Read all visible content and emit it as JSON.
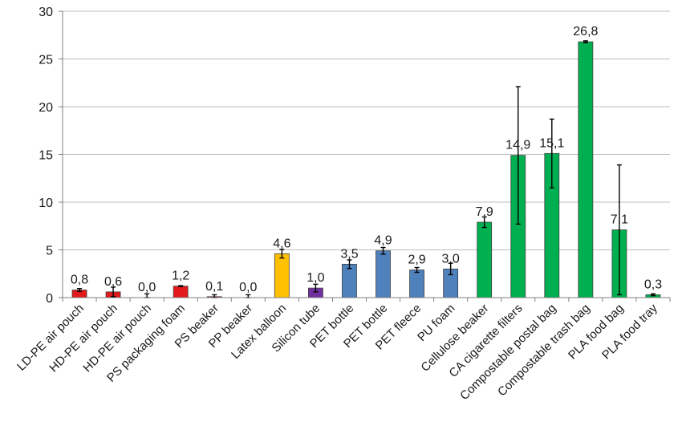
{
  "chart_data": {
    "type": "bar",
    "title": "",
    "xlabel": "",
    "ylabel": "",
    "ylim": [
      0,
      30
    ],
    "yticks": [
      0,
      5,
      10,
      15,
      20,
      25,
      30
    ],
    "grid": true,
    "legend": "none",
    "categories": [
      "LD-PE air pouch",
      "HD-PE air pouch",
      "HD-PE air pouch",
      "PS packaging foam",
      "PS beaker",
      "PP beaker",
      "Latex balloon",
      "Silicon tube",
      "PET bottle",
      "PET bottle",
      "PET fleece",
      "PU foam",
      "Cellulose beaker",
      "CA cigarette filters",
      "Compostable postal bag",
      "Compostable trash bag",
      "PLA food bag",
      "PLA food tray"
    ],
    "values": [
      0.8,
      0.6,
      0.0,
      1.2,
      0.1,
      0.0,
      4.6,
      1.0,
      3.5,
      4.9,
      2.9,
      3.0,
      7.9,
      14.9,
      15.1,
      26.8,
      7.1,
      0.3
    ],
    "value_labels": [
      "0,8",
      "0,6",
      "0,0",
      "1,2",
      "0,1",
      "0,0",
      "4,6",
      "1,0",
      "3,5",
      "4,9",
      "2,9",
      "3,0",
      "7,9",
      "14,9",
      "15,1",
      "26,8",
      "7,1",
      "0,3"
    ],
    "errors": [
      0.15,
      0.5,
      0.4,
      0.05,
      0.2,
      0.3,
      0.45,
      0.4,
      0.45,
      0.35,
      0.25,
      0.6,
      0.55,
      7.2,
      3.6,
      0.1,
      6.8,
      0.1
    ],
    "colors": [
      "#e31a1c",
      "#e31a1c",
      "#e31a1c",
      "#e31a1c",
      "#e31a1c",
      "#e31a1c",
      "#ffc000",
      "#7030a0",
      "#4f81bd",
      "#4f81bd",
      "#4f81bd",
      "#4f81bd",
      "#00b050",
      "#00b050",
      "#00b050",
      "#00b050",
      "#00b050",
      "#00b050"
    ]
  }
}
